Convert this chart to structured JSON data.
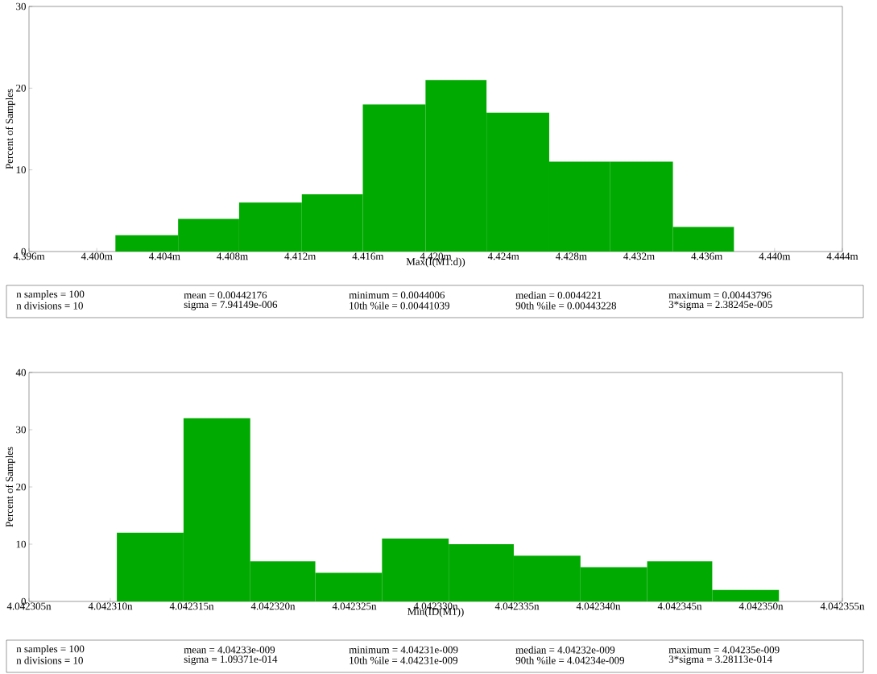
{
  "chart_data": [
    {
      "type": "histogram",
      "xlabel": "Max(I(M1:d))",
      "ylabel": "Percent of Samples",
      "color": "#00aa00",
      "bins": [
        4.4011,
        4.4048,
        4.4084,
        4.4121,
        4.4157,
        4.4194,
        4.423,
        4.4267,
        4.4303,
        4.434,
        4.4376
      ],
      "values": [
        2,
        4,
        6,
        7,
        18,
        21,
        17,
        11,
        11,
        3
      ],
      "xlim": [
        4.396,
        4.444
      ],
      "xticks": [
        {
          "value": 4.396,
          "label": "4.396m"
        },
        {
          "value": 4.4,
          "label": "4.400m"
        },
        {
          "value": 4.404,
          "label": "4.404m"
        },
        {
          "value": 4.408,
          "label": "4.408m"
        },
        {
          "value": 4.412,
          "label": "4.412m"
        },
        {
          "value": 4.416,
          "label": "4.416m"
        },
        {
          "value": 4.42,
          "label": "4.420m"
        },
        {
          "value": 4.424,
          "label": "4.424m"
        },
        {
          "value": 4.428,
          "label": "4.428m"
        },
        {
          "value": 4.432,
          "label": "4.432m"
        },
        {
          "value": 4.436,
          "label": "4.436m"
        },
        {
          "value": 4.44,
          "label": "4.440m"
        },
        {
          "value": 4.444,
          "label": "4.444m"
        }
      ],
      "ylim": [
        0,
        30
      ],
      "yticks": [
        0,
        10,
        20,
        30
      ],
      "annotations": [
        "n samples = 100",
        "mean = 0.00442176",
        "minimum = 0.0044006",
        "median = 0.0044221",
        "maximum = 0.00443796",
        "n divisions = 10",
        "sigma = 7.94149e-006",
        "10th %ile = 0.00441039",
        "90th %ile = 0.00443228",
        "3*sigma = 2.38245e-005"
      ]
    },
    {
      "type": "histogram",
      "xlabel": "Min(ID(M1))",
      "ylabel": "Percent of Samples",
      "color": "#00aa00",
      "bins": [
        4.0423104,
        4.0423145,
        4.0423186,
        4.0423226,
        4.0423267,
        4.0423308,
        4.0423348,
        4.0423389,
        4.042343,
        4.042347,
        4.0423511
      ],
      "values": [
        12,
        32,
        7,
        5,
        11,
        10,
        8,
        6,
        7,
        2
      ],
      "xlim": [
        4.042305,
        4.042355
      ],
      "xticks": [
        {
          "value": 4.042305,
          "label": "4.042305n"
        },
        {
          "value": 4.04231,
          "label": "4.042310n"
        },
        {
          "value": 4.042315,
          "label": "4.042315n"
        },
        {
          "value": 4.04232,
          "label": "4.042320n"
        },
        {
          "value": 4.042325,
          "label": "4.042325n"
        },
        {
          "value": 4.04233,
          "label": "4.042330n"
        },
        {
          "value": 4.042335,
          "label": "4.042335n"
        },
        {
          "value": 4.04234,
          "label": "4.042340n"
        },
        {
          "value": 4.042345,
          "label": "4.042345n"
        },
        {
          "value": 4.04235,
          "label": "4.042350n"
        },
        {
          "value": 4.042355,
          "label": "4.042355n"
        }
      ],
      "ylim": [
        0,
        40
      ],
      "yticks": [
        0,
        10,
        20,
        30,
        40
      ],
      "annotations": [
        "n samples = 100",
        "mean = 4.04233e-009",
        "minimum = 4.04231e-009",
        "median = 4.04232e-009",
        "maximum = 4.04235e-009",
        "n divisions = 10",
        "sigma = 1.09371e-014",
        "10th %ile = 4.04231e-009",
        "90th %ile = 4.04234e-009",
        "3*sigma = 3.28113e-014"
      ]
    }
  ]
}
